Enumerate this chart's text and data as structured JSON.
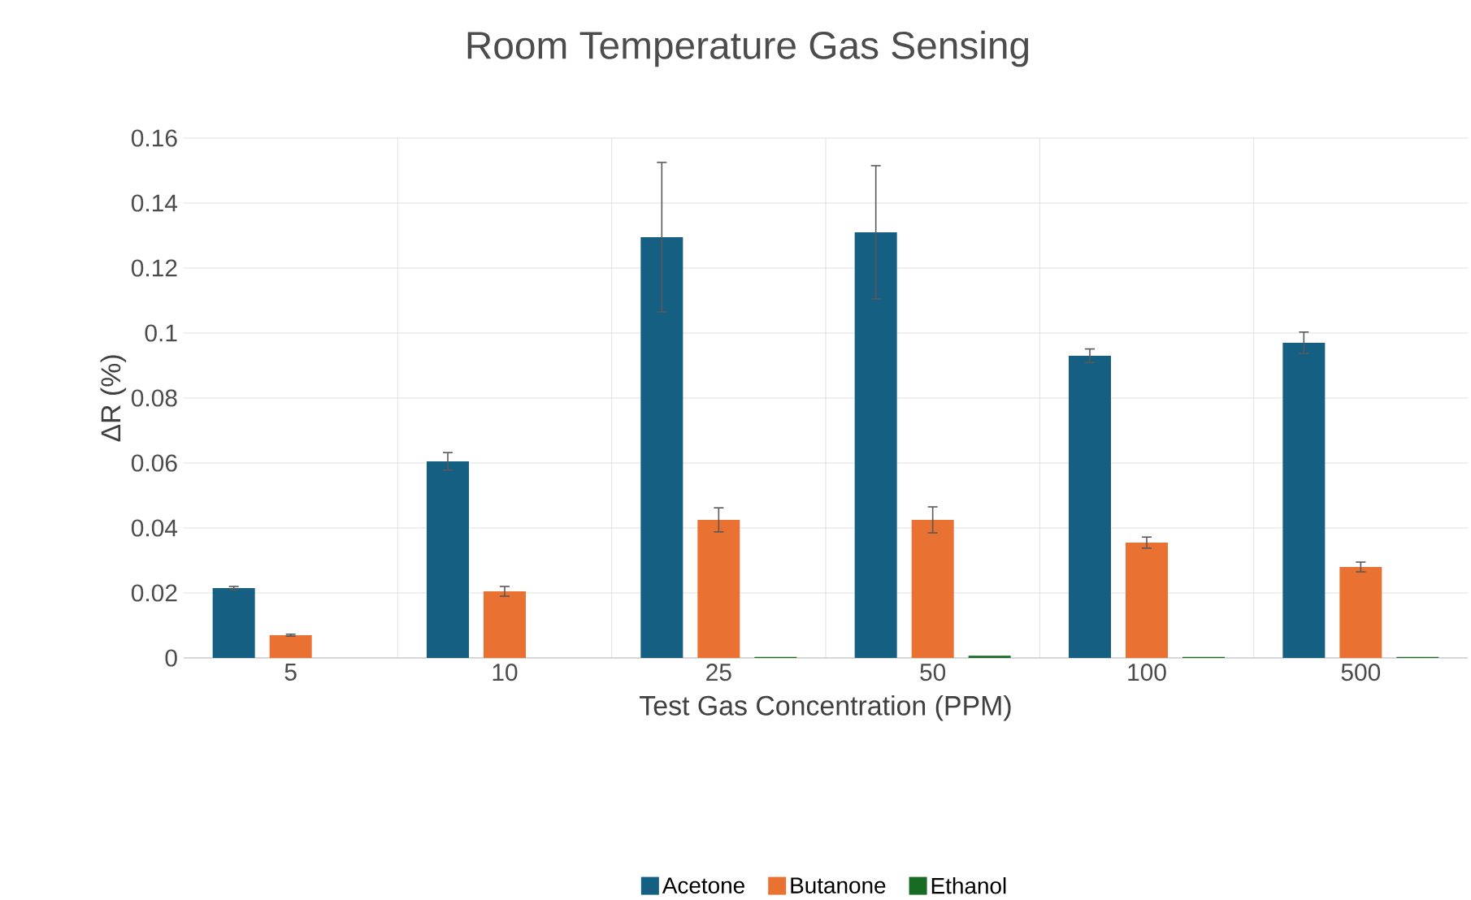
{
  "chart_data": {
    "type": "bar",
    "title": "Room Temperature Gas Sensing",
    "xlabel": "Test Gas Concentration (PPM)",
    "ylabel": "ΔR (%)",
    "categories": [
      "5",
      "10",
      "25",
      "50",
      "100",
      "500"
    ],
    "series": [
      {
        "name": "Acetone",
        "color": "#156082",
        "values": [
          0.0215,
          0.0605,
          0.1295,
          0.131,
          0.093,
          0.097
        ],
        "errors": [
          0.0005,
          0.0027,
          0.023,
          0.0205,
          0.0021,
          0.0033
        ]
      },
      {
        "name": "Butanone",
        "color": "#e97132",
        "values": [
          0.007,
          0.0205,
          0.0425,
          0.0425,
          0.0355,
          0.028
        ],
        "errors": [
          0.0003,
          0.0015,
          0.0037,
          0.004,
          0.0017,
          0.0015
        ]
      },
      {
        "name": "Ethanol",
        "color": "#196b24",
        "values": [
          0,
          0,
          0.0003,
          0.0007,
          0.0003,
          0.0003
        ]
      }
    ],
    "ylim": [
      0,
      0.16
    ],
    "yticks": [
      0,
      0.02,
      0.04,
      0.06,
      0.08,
      0.1,
      0.12,
      0.14,
      0.16
    ],
    "grid": true,
    "legend": "bottom"
  }
}
